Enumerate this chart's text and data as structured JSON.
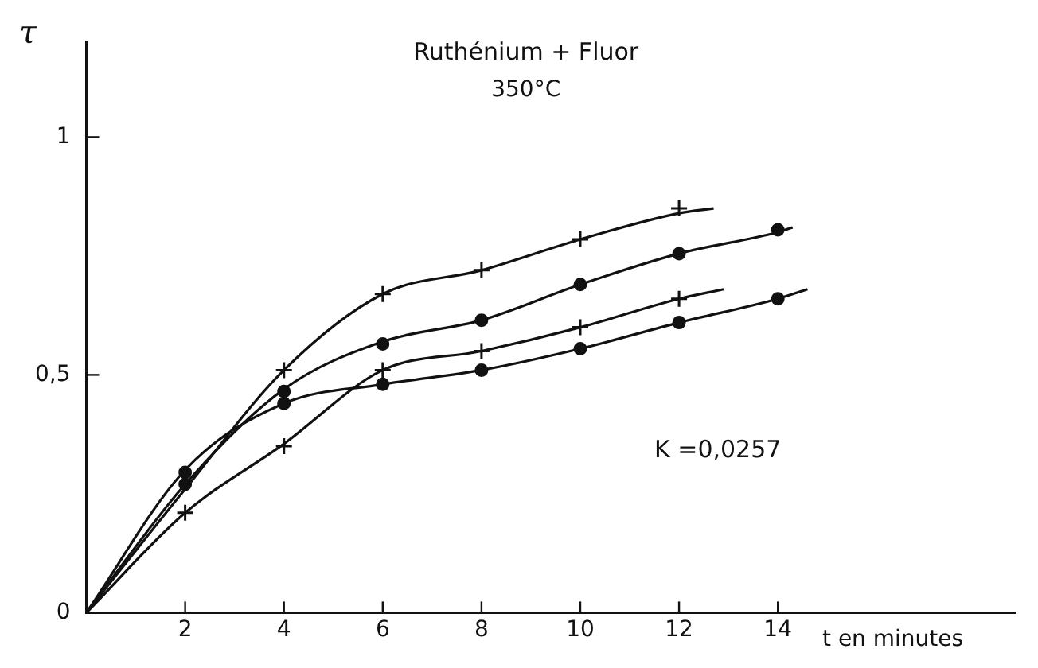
{
  "chart_data": {
    "type": "line",
    "title": "Ruthénium + Fluor",
    "subtitle": "350°C",
    "xlabel": "t en minutes",
    "ylabel": "τ",
    "annotations": [
      "K =0,0257"
    ],
    "xlim": [
      0,
      18.8
    ],
    "ylim": [
      0,
      1.2
    ],
    "xticks": [
      2,
      4,
      6,
      8,
      10,
      12,
      14
    ],
    "yticks": [
      0,
      {
        "value": 0.5,
        "label": "0,5"
      },
      1
    ],
    "grid": false,
    "legend": false,
    "line_style": "solid",
    "series": [
      {
        "type": "line",
        "marker": "none",
        "color": "#111111",
        "x": [
          0,
          2,
          4,
          6,
          8,
          10,
          12,
          12.7
        ],
        "values": [
          0,
          0.26,
          0.51,
          0.67,
          0.72,
          0.785,
          0.84,
          0.85
        ]
      },
      {
        "type": "line",
        "marker": "none",
        "color": "#111111",
        "x": [
          0,
          2,
          4,
          6,
          8,
          10,
          12,
          14,
          14.3
        ],
        "values": [
          0,
          0.27,
          0.47,
          0.57,
          0.615,
          0.69,
          0.755,
          0.8,
          0.81
        ]
      },
      {
        "type": "line",
        "marker": "none",
        "color": "#111111",
        "x": [
          0,
          2,
          4,
          6,
          8,
          10,
          12,
          12.9
        ],
        "values": [
          0,
          0.21,
          0.355,
          0.51,
          0.55,
          0.6,
          0.66,
          0.68
        ]
      },
      {
        "type": "line",
        "marker": "none",
        "color": "#111111",
        "x": [
          0,
          2,
          4,
          6,
          8,
          10,
          12,
          14,
          14.6
        ],
        "values": [
          0,
          0.3,
          0.44,
          0.48,
          0.51,
          0.555,
          0.61,
          0.66,
          0.68
        ]
      },
      {
        "type": "scatter",
        "marker": "cross",
        "color": "#111111",
        "x": [
          4,
          6,
          8,
          10,
          12
        ],
        "values": [
          0.51,
          0.67,
          0.72,
          0.785,
          0.85
        ]
      },
      {
        "type": "scatter",
        "marker": "circle",
        "color": "#111111",
        "x": [
          2,
          4,
          6,
          8,
          10,
          12,
          14
        ],
        "values": [
          0.27,
          0.465,
          0.565,
          0.615,
          0.69,
          0.755,
          0.805
        ]
      },
      {
        "type": "scatter",
        "marker": "cross",
        "color": "#111111",
        "x": [
          2,
          4,
          6,
          8,
          10,
          12
        ],
        "values": [
          0.21,
          0.35,
          0.51,
          0.55,
          0.6,
          0.66
        ]
      },
      {
        "type": "scatter",
        "marker": "circle",
        "color": "#111111",
        "x": [
          2,
          4,
          6,
          8,
          10,
          12,
          14
        ],
        "values": [
          0.295,
          0.44,
          0.48,
          0.51,
          0.555,
          0.61,
          0.66
        ]
      }
    ]
  }
}
